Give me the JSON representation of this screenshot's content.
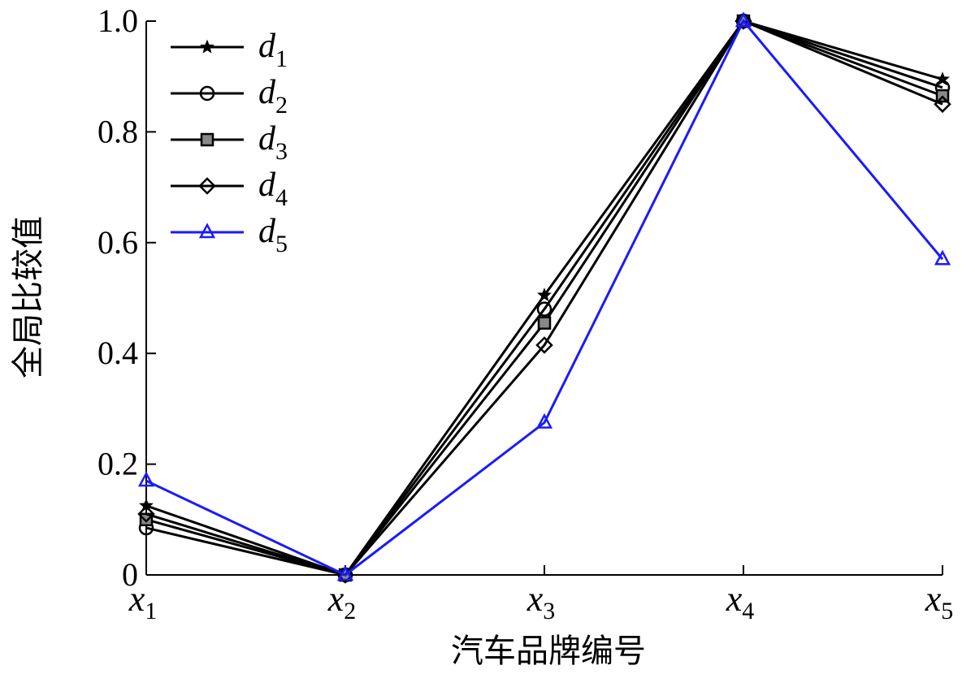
{
  "chart_data": {
    "type": "line",
    "xlabel": "汽车品牌编号",
    "ylabel": "全局比较值",
    "categories": [
      {
        "main": "x",
        "sub": "1"
      },
      {
        "main": "x",
        "sub": "2"
      },
      {
        "main": "x",
        "sub": "3"
      },
      {
        "main": "x",
        "sub": "4"
      },
      {
        "main": "x",
        "sub": "5"
      }
    ],
    "ylim": [
      0,
      1.0
    ],
    "yticks": [
      0,
      0.2,
      0.4,
      0.6,
      0.8,
      1.0
    ],
    "ytick_labels": [
      "0",
      "0.2",
      "0.4",
      "0.6",
      "0.8",
      "1.0"
    ],
    "grid": false,
    "legend_position": "top-left",
    "series": [
      {
        "name": "d",
        "sub": "1",
        "marker": "star",
        "color": "#000000",
        "values": [
          0.125,
          0.0,
          0.505,
          1.0,
          0.895
        ]
      },
      {
        "name": "d",
        "sub": "2",
        "marker": "circle",
        "color": "#000000",
        "values": [
          0.085,
          0.0,
          0.48,
          1.0,
          0.88
        ]
      },
      {
        "name": "d",
        "sub": "3",
        "marker": "square",
        "color": "#000000",
        "values": [
          0.1,
          0.0,
          0.455,
          1.0,
          0.865
        ]
      },
      {
        "name": "d",
        "sub": "4",
        "marker": "diamond",
        "color": "#000000",
        "values": [
          0.11,
          0.0,
          0.415,
          1.0,
          0.85
        ]
      },
      {
        "name": "d",
        "sub": "5",
        "marker": "triangle",
        "color": "#1a1aff",
        "values": [
          0.17,
          0.0,
          0.275,
          1.0,
          0.57
        ]
      }
    ]
  }
}
